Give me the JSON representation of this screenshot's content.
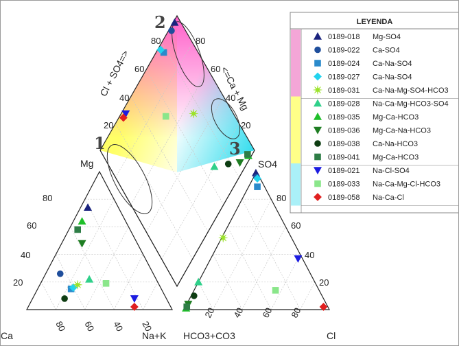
{
  "chart_data": {
    "type": "scatter",
    "subtype": "piper-diagram",
    "title": "",
    "cation_triangle": {
      "corner_labels": {
        "left": "Ca",
        "top": "Mg",
        "right": "Na+K"
      },
      "ticks_left_edge": [
        "20",
        "40",
        "60",
        "80"
      ],
      "ticks_bottom_edge": [
        "80",
        "60",
        "40",
        "20"
      ]
    },
    "anion_triangle": {
      "corner_labels": {
        "left": "HCO3+CO3",
        "top": "SO4",
        "right": "Cl"
      },
      "ticks_right_edge": [
        "80",
        "60",
        "40",
        "20"
      ],
      "ticks_bottom_edge": [
        "20",
        "40",
        "60",
        "80"
      ]
    },
    "diamond": {
      "label_left": "Cl + SO4=>",
      "label_right": "<=Ca + Mg",
      "ticks_left_edge": [
        "20",
        "40",
        "60",
        "80"
      ],
      "ticks_right_edge": [
        "80",
        "60",
        "40",
        "20"
      ],
      "zones": [
        {
          "label": "1",
          "color": "#ffff66"
        },
        {
          "label": "2",
          "color": "#ff66cc"
        },
        {
          "label": "3",
          "color": "#33ccee"
        }
      ]
    },
    "legend": {
      "title": "LEYENDA",
      "placement": "top-right",
      "groups": [
        {
          "color": "#f4a6d7",
          "entries": [
            0,
            1,
            2,
            3,
            4
          ]
        },
        {
          "color": "#ffff88",
          "entries": [
            5,
            6,
            7,
            8,
            9
          ]
        },
        {
          "color": "#aaf0f8",
          "entries": [
            10,
            11,
            12
          ]
        }
      ]
    },
    "series": [
      {
        "id": "0189-018",
        "name": "Mg-SO4",
        "marker": "triangle-up",
        "color": "#1a237e",
        "cation": {
          "Mg": 74,
          "Ca": 21,
          "Na": 5
        },
        "anion": {
          "SO4": 99,
          "HCO3": 1,
          "Cl": 0
        },
        "diamond": {
          "SO4Cl": 99,
          "CaMg": 95
        }
      },
      {
        "id": "0189-022",
        "name": "Ca-SO4",
        "marker": "circle",
        "color": "#1f4e9c",
        "cation": {
          "Mg": 26,
          "Ca": 64,
          "Na": 10
        },
        "anion": {
          "SO4": 96,
          "HCO3": 2,
          "Cl": 2
        },
        "diamond": {
          "SO4Cl": 98,
          "CaMg": 90
        }
      },
      {
        "id": "0189-024",
        "name": "Ca-Na-SO4",
        "marker": "square",
        "color": "#2b8acb",
        "cation": {
          "Mg": 15,
          "Ca": 62,
          "Na": 23
        },
        "anion": {
          "SO4": 89,
          "HCO3": 5,
          "Cl": 6
        },
        "diamond": {
          "SO4Cl": 95,
          "CaMg": 77
        }
      },
      {
        "id": "0189-027",
        "name": "Ca-Na-SO4",
        "marker": "diamond",
        "color": "#22d3ee",
        "cation": {
          "Mg": 16,
          "Ca": 60,
          "Na": 24
        },
        "anion": {
          "SO4": 95,
          "HCO3": 2,
          "Cl": 3
        },
        "diamond": {
          "SO4Cl": 98,
          "CaMg": 76
        }
      },
      {
        "id": "0189-031",
        "name": "Ca-Na-Mg-SO4-HCO3",
        "marker": "star",
        "color": "#9be32a",
        "cation": {
          "Mg": 18,
          "Ca": 56,
          "Na": 26
        },
        "anion": {
          "SO4": 52,
          "HCO3": 47,
          "Cl": 1
        },
        "diamond": {
          "SO4Cl": 53,
          "CaMg": 74
        }
      },
      {
        "id": "0189-028",
        "name": "Na-Ca-Mg-HCO3-SO4",
        "marker": "triangle-up",
        "color": "#2fd08a",
        "cation": {
          "Mg": 22,
          "Ca": 46,
          "Na": 32
        },
        "anion": {
          "SO4": 20,
          "HCO3": 80,
          "Cl": 0
        },
        "diamond": {
          "SO4Cl": 20,
          "CaMg": 68
        }
      },
      {
        "id": "0189-035",
        "name": "Mg-Ca-HCO3",
        "marker": "triangle-up",
        "color": "#1fbf2a",
        "cation": {
          "Mg": 64,
          "Ca": 30,
          "Na": 6
        },
        "anion": {
          "SO4": 1,
          "HCO3": 98,
          "Cl": 1
        },
        "diamond": {
          "SO4Cl": 2,
          "CaMg": 94
        }
      },
      {
        "id": "0189-036",
        "name": "Mg-Ca-Na-HCO3",
        "marker": "triangle-down",
        "color": "#1e7d22",
        "cation": {
          "Mg": 48,
          "Ca": 38,
          "Na": 14
        },
        "anion": {
          "SO4": 4,
          "HCO3": 95,
          "Cl": 1
        },
        "diamond": {
          "SO4Cl": 5,
          "CaMg": 86
        }
      },
      {
        "id": "0189-038",
        "name": "Ca-Na-HCO3",
        "marker": "circle",
        "color": "#0e3d12",
        "cation": {
          "Mg": 8,
          "Ca": 70,
          "Na": 22
        },
        "anion": {
          "SO4": 10,
          "HCO3": 88,
          "Cl": 2
        },
        "diamond": {
          "SO4Cl": 12,
          "CaMg": 78
        }
      },
      {
        "id": "0189-041",
        "name": "Mg-Ca-HCO3",
        "marker": "square",
        "color": "#2e7d46",
        "cation": {
          "Mg": 58,
          "Ca": 36,
          "Na": 6
        },
        "anion": {
          "SO4": 2,
          "HCO3": 97,
          "Cl": 1
        },
        "diamond": {
          "SO4Cl": 3,
          "CaMg": 94
        }
      },
      {
        "id": "0189-021",
        "name": "Na-Cl-SO4",
        "marker": "triangle-down",
        "color": "#1c1ce0",
        "cation": {
          "Mg": 8,
          "Ca": 22,
          "Na": 70
        },
        "anion": {
          "SO4": 37,
          "HCO3": 3,
          "Cl": 60
        },
        "diamond": {
          "SO4Cl": 97,
          "CaMg": 30
        }
      },
      {
        "id": "0189-033",
        "name": "Na-Ca-Mg-Cl-HCO3",
        "marker": "square",
        "color": "#8ae68a",
        "cation": {
          "Mg": 19,
          "Ca": 36,
          "Na": 45
        },
        "anion": {
          "SO4": 14,
          "HCO3": 30,
          "Cl": 56
        },
        "diamond": {
          "SO4Cl": 70,
          "CaMg": 55
        }
      },
      {
        "id": "0189-058",
        "name": "Na-Ca-Cl",
        "marker": "diamond",
        "color": "#e02020",
        "cation": {
          "Mg": 2,
          "Ca": 25,
          "Na": 73
        },
        "anion": {
          "SO4": 2,
          "HCO3": 3,
          "Cl": 95
        },
        "diamond": {
          "SO4Cl": 97,
          "CaMg": 27
        }
      }
    ]
  }
}
